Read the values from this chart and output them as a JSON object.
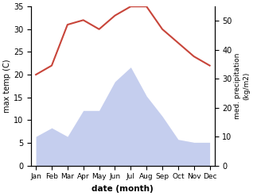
{
  "months": [
    "Jan",
    "Feb",
    "Mar",
    "Apr",
    "May",
    "Jun",
    "Jul",
    "Aug",
    "Sep",
    "Oct",
    "Nov",
    "Dec"
  ],
  "temperature": [
    20,
    22,
    31,
    32,
    30,
    33,
    35,
    35,
    30,
    27,
    24,
    22
  ],
  "precipitation": [
    10,
    13,
    10,
    19,
    19,
    29,
    34,
    24,
    17,
    9,
    8,
    8
  ],
  "temp_color": "#c8453a",
  "precip_fill_color": "#b0bce8",
  "precip_fill_alpha": 0.6,
  "temp_ylim": [
    0,
    35
  ],
  "precip_ylim": [
    0,
    55
  ],
  "temp_yticks": [
    0,
    5,
    10,
    15,
    20,
    25,
    30,
    35
  ],
  "precip_yticks": [
    0,
    10,
    20,
    30,
    40,
    50
  ],
  "ylabel_left": "max temp (C)",
  "ylabel_right": "med. precipitation\n(kg/m2)",
  "xlabel": "date (month)",
  "fig_width": 3.18,
  "fig_height": 2.47,
  "dpi": 100
}
